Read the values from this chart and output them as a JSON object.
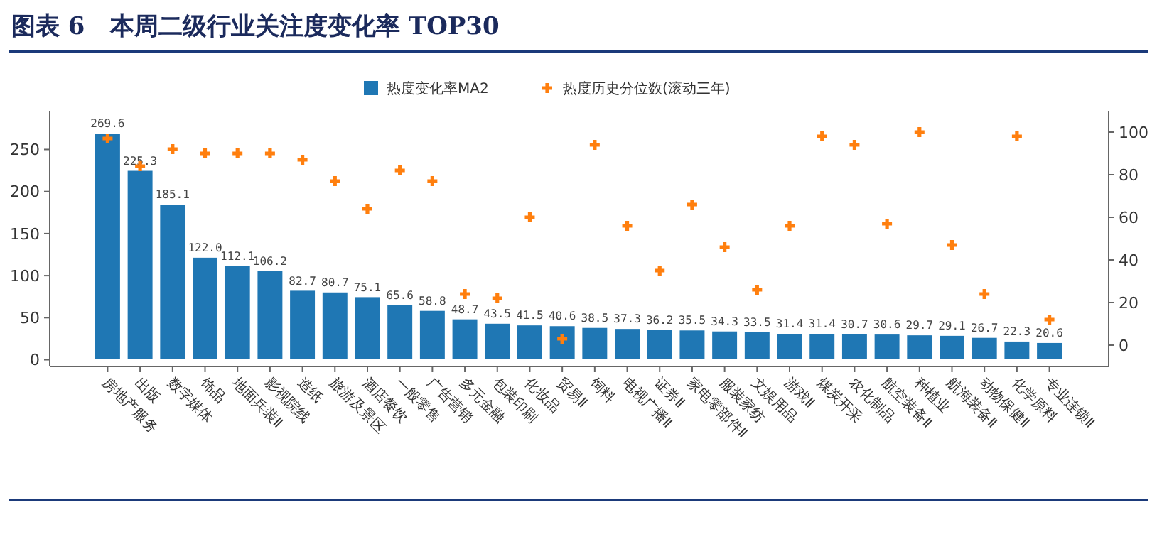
{
  "chart_data": {
    "type": "bar",
    "title": "图表 6   本周二级行业关注度变化率 TOP30",
    "categories": [
      "房地产服务",
      "出版",
      "数字媒体",
      "饰品",
      "地面兵装Ⅱ",
      "影视院线",
      "造纸",
      "旅游及景区",
      "酒店餐饮",
      "一般零售",
      "广告营销",
      "多元金融",
      "包装印刷",
      "化妆品",
      "贸易Ⅱ",
      "饲料",
      "电视广播Ⅱ",
      "证券Ⅱ",
      "家电零部件Ⅱ",
      "服装家纺",
      "文娱用品",
      "游戏Ⅱ",
      "煤炭开采",
      "农化制品",
      "航空装备Ⅱ",
      "种植业",
      "航海装备Ⅱ",
      "动物保健Ⅱ",
      "化学原料",
      "专业连锁Ⅱ"
    ],
    "series": [
      {
        "name": "热度变化率MA2",
        "color": "#1f77b4",
        "values": [
          269.6,
          225.3,
          185.1,
          122.0,
          112.1,
          106.2,
          82.7,
          80.7,
          75.1,
          65.6,
          58.8,
          48.7,
          43.5,
          41.5,
          40.6,
          38.5,
          37.3,
          36.2,
          35.5,
          34.3,
          33.5,
          31.4,
          31.4,
          30.7,
          30.6,
          29.7,
          29.1,
          26.7,
          22.3,
          20.6
        ],
        "value_labels": [
          "269.6",
          "225.3",
          "185.1",
          "122.0",
          "112.1",
          "106.2",
          "82.7",
          "80.7",
          "75.1",
          "65.6",
          "58.8",
          "48.7",
          "43.5",
          "41.5",
          "40.6",
          "38.5",
          "37.3",
          "36.2",
          "35.5",
          "34.3",
          "33.5",
          "31.4",
          "31.4",
          "30.7",
          "30.6",
          "29.7",
          "29.1",
          "26.7",
          "22.3",
          "20.6"
        ]
      },
      {
        "name": "热度历史分位数(滚动三年)",
        "type": "scatter",
        "axis": "y2",
        "color": "#ff7f0e",
        "marker": "cross",
        "values": [
          97,
          84,
          92,
          90,
          90,
          90,
          87,
          77,
          64,
          82,
          77,
          24,
          22,
          60,
          3,
          94,
          56,
          35,
          66,
          46,
          26,
          56,
          98,
          94,
          57,
          100,
          47,
          24,
          98,
          12
        ]
      }
    ],
    "ylim": [
      -8,
      296
    ],
    "yticks": [
      0,
      50,
      100,
      150,
      200,
      250
    ],
    "y2lim": [
      -10,
      110
    ],
    "y2ticks": [
      0,
      20,
      40,
      60,
      80,
      100
    ],
    "legend": "top",
    "grid": false
  }
}
